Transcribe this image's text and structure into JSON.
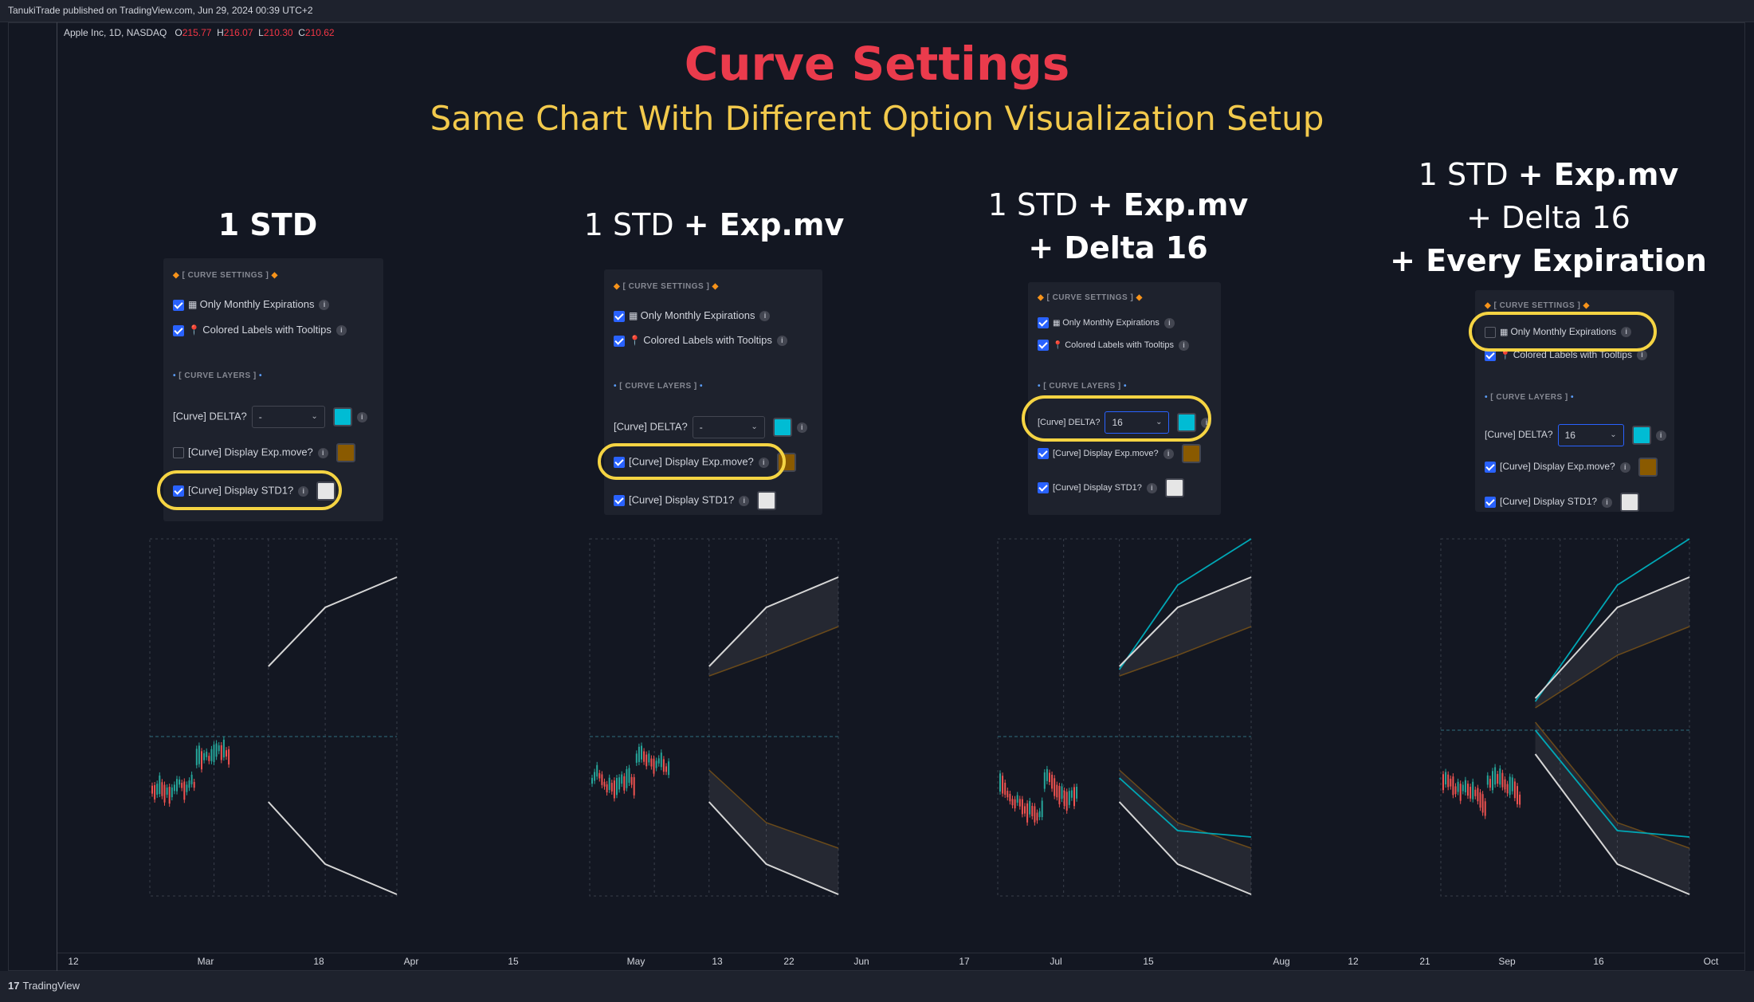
{
  "publisher": "TanukiTrade published on TradingView.com, Jun 29, 2024 00:39 UTC+2",
  "symbol": "Apple Inc, 1D, NASDAQ",
  "ohlc": {
    "o_label": "O",
    "o": "215.77",
    "h_label": "H",
    "h": "216.07",
    "l_label": "L",
    "l": "210.30",
    "c_label": "C",
    "c": "210.62"
  },
  "title": "Curve Settings",
  "subtitle": "Same Chart With Different Option Visualization Setup",
  "columns": [
    {
      "heading_lines": [
        [
          "1 STD",
          ""
        ]
      ]
    },
    {
      "heading_lines": [
        [
          "1 STD ",
          "+ Exp.mv"
        ]
      ]
    },
    {
      "heading_lines": [
        [
          "1 STD ",
          "+ Exp.mv"
        ],
        [
          "",
          "+ Delta 16"
        ]
      ]
    },
    {
      "heading_lines": [
        [
          "1 STD ",
          "+ Exp.mv"
        ],
        [
          "+ Delta 16",
          ""
        ],
        [
          "",
          "+ Every Expiration"
        ]
      ]
    }
  ],
  "panel_text": {
    "curve_settings": "[ CURVE SETTINGS ]",
    "curve_layers": "[ CURVE LAYERS ]",
    "only_monthly": "Only Monthly Expirations",
    "colored_labels": "Colored Labels with Tooltips",
    "delta_label": "[Curve] DELTA?",
    "exp_move_label": "[Curve] Display Exp.move?",
    "std1_label": "[Curve] Display STD1?"
  },
  "panels": [
    {
      "only_monthly": true,
      "colored_labels": true,
      "delta": "-",
      "exp_move": false,
      "std1": true,
      "highlight": "std1"
    },
    {
      "only_monthly": true,
      "colored_labels": true,
      "delta": "-",
      "exp_move": true,
      "std1": true,
      "highlight": "exp_move"
    },
    {
      "only_monthly": true,
      "colored_labels": true,
      "delta": "16",
      "exp_move": true,
      "std1": true,
      "highlight": "delta"
    },
    {
      "only_monthly": false,
      "colored_labels": true,
      "delta": "16",
      "exp_move": true,
      "std1": true,
      "highlight": "only_monthly"
    }
  ],
  "colors": {
    "title": "#ea3b4c",
    "subtitle": "#f2c94c",
    "highlight": "#f5d443",
    "delta_swatch": "#00bcd4",
    "expmove_swatch": "#8a5a00",
    "std1_swatch": "#e6e6e6",
    "up_candle": "#26a69a",
    "down_candle": "#ef5350"
  },
  "x_axis_ticks": [
    "12",
    "Mar",
    "18",
    "Apr",
    "15",
    "May",
    "13",
    "22",
    "Jun",
    "17",
    "Jul",
    "15",
    "Aug",
    "12",
    "21",
    "Sep",
    "16",
    "Oct"
  ],
  "footer_logo": "TradingView",
  "footer_logo_mark": "17"
}
